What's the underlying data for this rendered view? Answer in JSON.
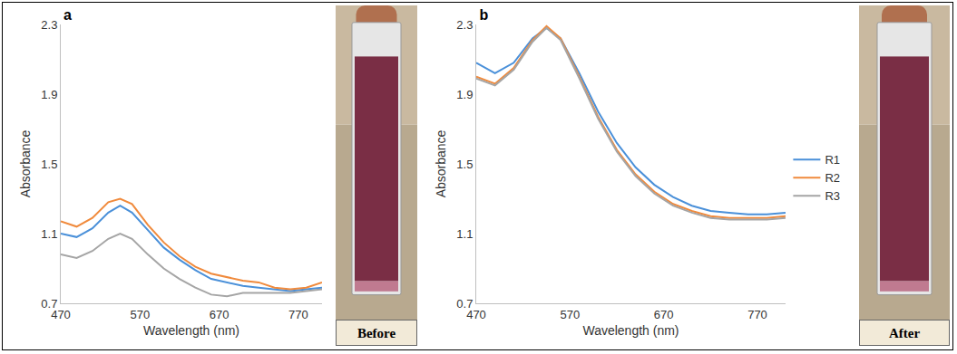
{
  "chart_data": [
    {
      "type": "line",
      "title": "a",
      "x_label": "Wavelength (nm)",
      "y_label": "Absorbance",
      "x": [
        470,
        490,
        510,
        530,
        545,
        560,
        580,
        600,
        620,
        640,
        660,
        680,
        700,
        720,
        740,
        760,
        780,
        800
      ],
      "xlim": [
        470,
        800
      ],
      "xticks": [
        470,
        570,
        670,
        770
      ],
      "ylim": [
        0.7,
        2.3
      ],
      "yticks": [
        0.7,
        1.1,
        1.5,
        1.9,
        2.3
      ],
      "grid": false,
      "series": [
        {
          "name": "R1",
          "color": "#4a90d9",
          "values": [
            1.1,
            1.08,
            1.13,
            1.22,
            1.26,
            1.22,
            1.12,
            1.02,
            0.95,
            0.89,
            0.84,
            0.82,
            0.8,
            0.79,
            0.78,
            0.77,
            0.78,
            0.79
          ]
        },
        {
          "name": "R2",
          "color": "#f08a3c",
          "values": [
            1.17,
            1.14,
            1.19,
            1.28,
            1.3,
            1.27,
            1.15,
            1.05,
            0.97,
            0.91,
            0.87,
            0.85,
            0.83,
            0.82,
            0.79,
            0.78,
            0.79,
            0.82
          ]
        },
        {
          "name": "R3",
          "color": "#a5a5a5",
          "values": [
            0.98,
            0.96,
            1.0,
            1.07,
            1.1,
            1.07,
            0.98,
            0.9,
            0.84,
            0.79,
            0.75,
            0.74,
            0.76,
            0.76,
            0.76,
            0.76,
            0.77,
            0.78
          ]
        }
      ]
    },
    {
      "type": "line",
      "title": "b",
      "x_label": "Wavelength (nm)",
      "y_label": "Absorbance",
      "x": [
        470,
        490,
        510,
        530,
        545,
        560,
        580,
        600,
        620,
        640,
        660,
        680,
        700,
        720,
        740,
        760,
        780,
        800
      ],
      "xlim": [
        470,
        800
      ],
      "xticks": [
        470,
        570,
        670,
        770
      ],
      "ylim": [
        0.7,
        2.3
      ],
      "yticks": [
        0.7,
        1.1,
        1.5,
        1.9,
        2.3
      ],
      "grid": false,
      "legend": "right",
      "series": [
        {
          "name": "R1",
          "color": "#4a90d9",
          "values": [
            2.08,
            2.02,
            2.08,
            2.22,
            2.28,
            2.22,
            2.02,
            1.8,
            1.62,
            1.48,
            1.38,
            1.31,
            1.26,
            1.23,
            1.22,
            1.21,
            1.21,
            1.22
          ]
        },
        {
          "name": "R2",
          "color": "#f08a3c",
          "values": [
            2.0,
            1.96,
            2.05,
            2.21,
            2.29,
            2.22,
            2.0,
            1.77,
            1.58,
            1.44,
            1.34,
            1.27,
            1.23,
            1.2,
            1.19,
            1.19,
            1.19,
            1.2
          ]
        },
        {
          "name": "R3",
          "color": "#a5a5a5",
          "values": [
            1.99,
            1.95,
            2.04,
            2.2,
            2.28,
            2.21,
            1.99,
            1.76,
            1.57,
            1.43,
            1.33,
            1.26,
            1.22,
            1.19,
            1.18,
            1.18,
            1.18,
            1.19
          ]
        }
      ]
    }
  ],
  "photos": [
    {
      "caption": "Before"
    },
    {
      "caption": "After"
    }
  ]
}
